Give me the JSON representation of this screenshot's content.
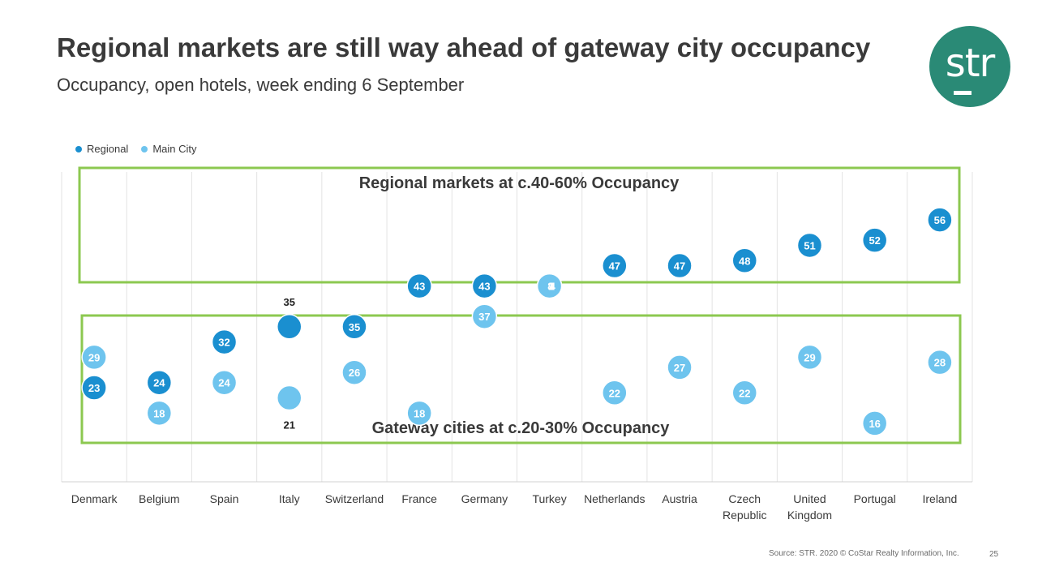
{
  "title": "Regional markets are still way ahead of gateway city occupancy",
  "subtitle": "Occupancy, open hotels, week ending 6 September",
  "logo": {
    "text": "str",
    "color": "#2a8a76"
  },
  "footer": {
    "source": "Source: STR. 2020 © CoStar Realty Information, Inc.",
    "page_number": "25"
  },
  "chart_data": {
    "type": "scatter",
    "categories": [
      "Denmark",
      "Belgium",
      "Spain",
      "Italy",
      "Switzerland",
      "France",
      "Germany",
      "Turkey",
      "Netherlands",
      "Austria",
      "Czech Republic",
      "United Kingdom",
      "Portugal",
      "Ireland"
    ],
    "series": [
      {
        "name": "Regional",
        "color": "#1a8fd0",
        "values": [
          23,
          24,
          32,
          35,
          35,
          43,
          43,
          43,
          47,
          47,
          48,
          51,
          52,
          56
        ]
      },
      {
        "name": "Main City",
        "color": "#6ec4ee",
        "values": [
          29,
          18,
          24,
          21,
          26,
          18,
          37,
          43,
          22,
          27,
          22,
          29,
          16,
          28
        ]
      }
    ],
    "ylim": [
      0,
      60
    ],
    "grid": "vertical",
    "legend": "top-left",
    "annotations": [
      {
        "text": "Regional markets at c.40-60% Occupancy",
        "box_color": "#8cc850"
      },
      {
        "text": "Gateway cities at c.20-30% Occupancy",
        "box_color": "#8cc850"
      }
    ],
    "turkey_overlap_label": "4318"
  }
}
